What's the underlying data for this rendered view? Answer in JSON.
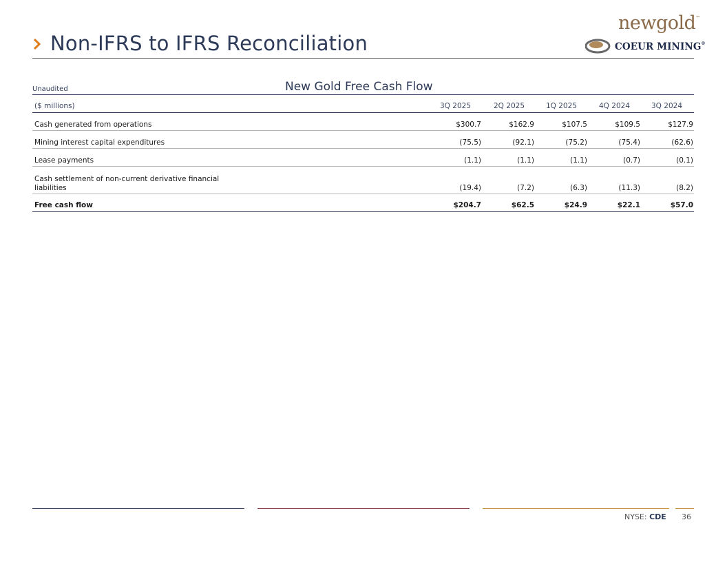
{
  "header": {
    "title": "Non-IFRS to IFRS Reconciliation",
    "logo_newgold": "newgold",
    "logo_coeur": "COEUR MINING"
  },
  "table": {
    "unaudited": "Unaudited",
    "title": "New Gold Free Cash Flow",
    "unit_label": "($ millions)",
    "columns": [
      "3Q 2025",
      "2Q 2025",
      "1Q 2025",
      "4Q 2024",
      "3Q 2024"
    ],
    "rows": [
      {
        "label": "Cash generated from operations",
        "values": [
          "$300.7",
          "$162.9",
          "$107.5",
          "$109.5",
          "$127.9"
        ]
      },
      {
        "label": "Mining interest capital expenditures",
        "values": [
          "(75.5)",
          "(92.1)",
          "(75.2)",
          "(75.4)",
          "(62.6)"
        ]
      },
      {
        "label": "Lease payments",
        "values": [
          "(1.1)",
          "(1.1)",
          "(1.1)",
          "(0.7)",
          "(0.1)"
        ]
      },
      {
        "label_line1": "Cash settlement of non-current derivative financial",
        "label_line2": "liabilities",
        "values": [
          "(19.4)",
          "(7.2)",
          "(6.3)",
          "(11.3)",
          "(8.2)"
        ]
      },
      {
        "label": "Free cash flow",
        "values": [
          "$204.7",
          "$62.5",
          "$24.9",
          "$22.1",
          "$57.0"
        ]
      }
    ]
  },
  "footer": {
    "exchange": "NYSE:",
    "ticker": "CDE",
    "page": "36"
  },
  "colors": {
    "navy": "#2d3a58",
    "accent_orange": "#e07b1a",
    "gold": "#8a6a48"
  }
}
